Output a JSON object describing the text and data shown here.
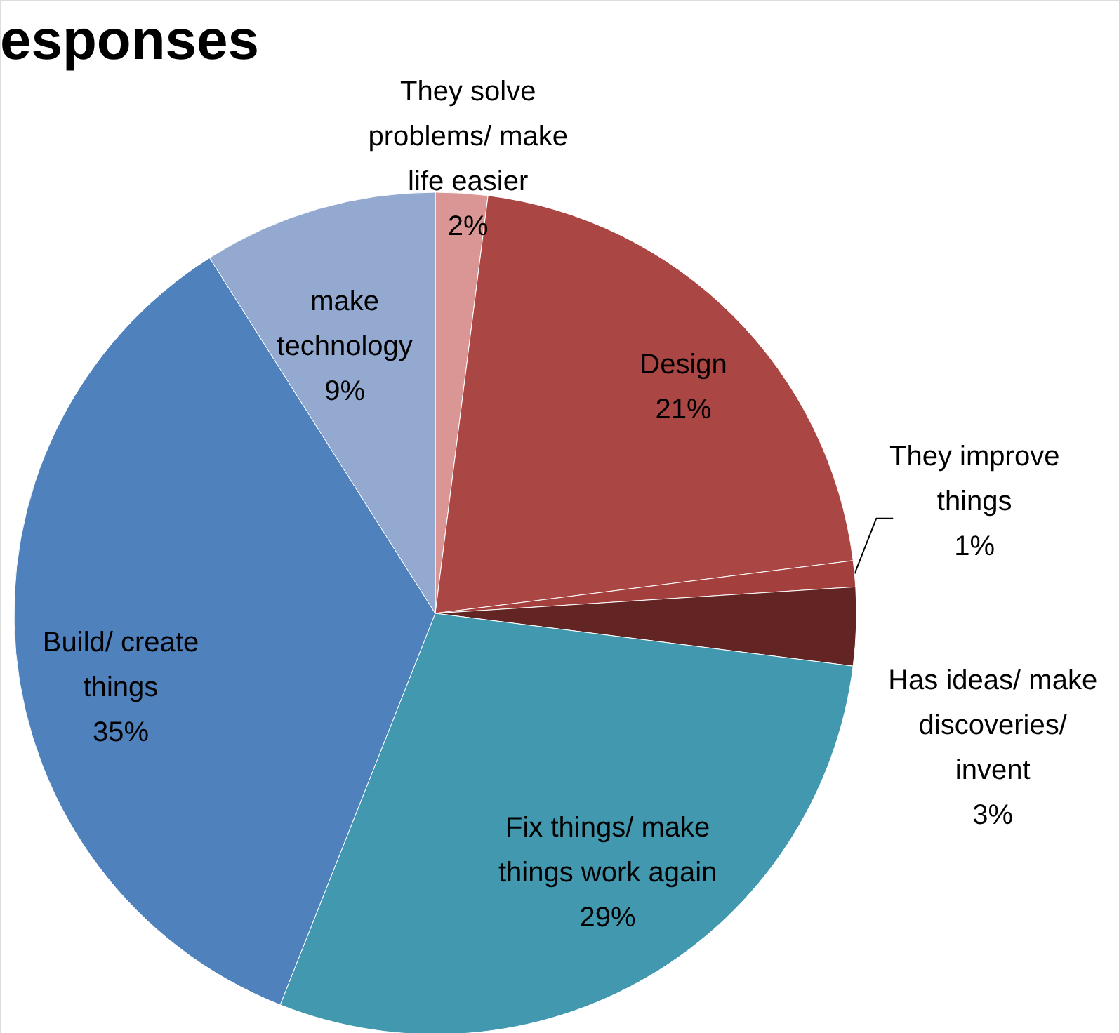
{
  "chart_data": {
    "type": "pie",
    "title": "esponses",
    "categories": [
      "They  solve problems/ make life easier",
      "Design",
      "They improve things",
      "Has ideas/ make discoveries/ invent",
      "Fix things/ make things work again",
      "Build/ create things",
      "make technology"
    ],
    "values": [
      2,
      21,
      1,
      3,
      29,
      35,
      9
    ],
    "value_labels": [
      "2%",
      "21%",
      "1%",
      "3%",
      "29%",
      "35%",
      "9%"
    ],
    "colors": [
      "#d99694",
      "#aa4643",
      "#a33f3c",
      "#632523",
      "#4198af",
      "#4f81bd",
      "#93a9cf"
    ]
  }
}
